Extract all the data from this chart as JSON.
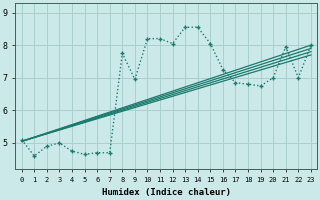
{
  "xlabel": "Humidex (Indice chaleur)",
  "ylabel": "",
  "background_color": "#cce9e9",
  "line_color": "#1a7a6e",
  "xlim": [
    -0.5,
    23.5
  ],
  "ylim": [
    4.2,
    9.3
  ],
  "xticks": [
    0,
    1,
    2,
    3,
    4,
    5,
    6,
    7,
    8,
    9,
    10,
    11,
    12,
    13,
    14,
    15,
    16,
    17,
    18,
    19,
    20,
    21,
    22,
    23
  ],
  "yticks": [
    5,
    6,
    7,
    8,
    9
  ],
  "grid_color": "#aacece",
  "jagged_line": {
    "x": [
      0,
      1,
      2,
      3,
      4,
      5,
      6,
      7,
      8,
      9,
      10,
      11,
      12,
      13,
      14,
      15,
      16,
      17,
      18,
      19,
      20,
      21,
      22,
      23
    ],
    "y": [
      5.1,
      4.6,
      4.9,
      5.0,
      4.75,
      4.65,
      4.7,
      4.7,
      7.75,
      6.95,
      8.2,
      8.2,
      8.05,
      8.55,
      8.55,
      8.05,
      7.25,
      6.85,
      6.8,
      6.75,
      7.0,
      7.95,
      7.0,
      8.0
    ]
  },
  "straight_lines": [
    {
      "x": [
        0,
        23
      ],
      "y": [
        5.05,
        8.0
      ]
    },
    {
      "x": [
        0,
        23
      ],
      "y": [
        5.05,
        7.9
      ]
    },
    {
      "x": [
        0,
        23
      ],
      "y": [
        5.05,
        7.8
      ]
    },
    {
      "x": [
        0,
        23
      ],
      "y": [
        5.05,
        7.7
      ]
    }
  ]
}
